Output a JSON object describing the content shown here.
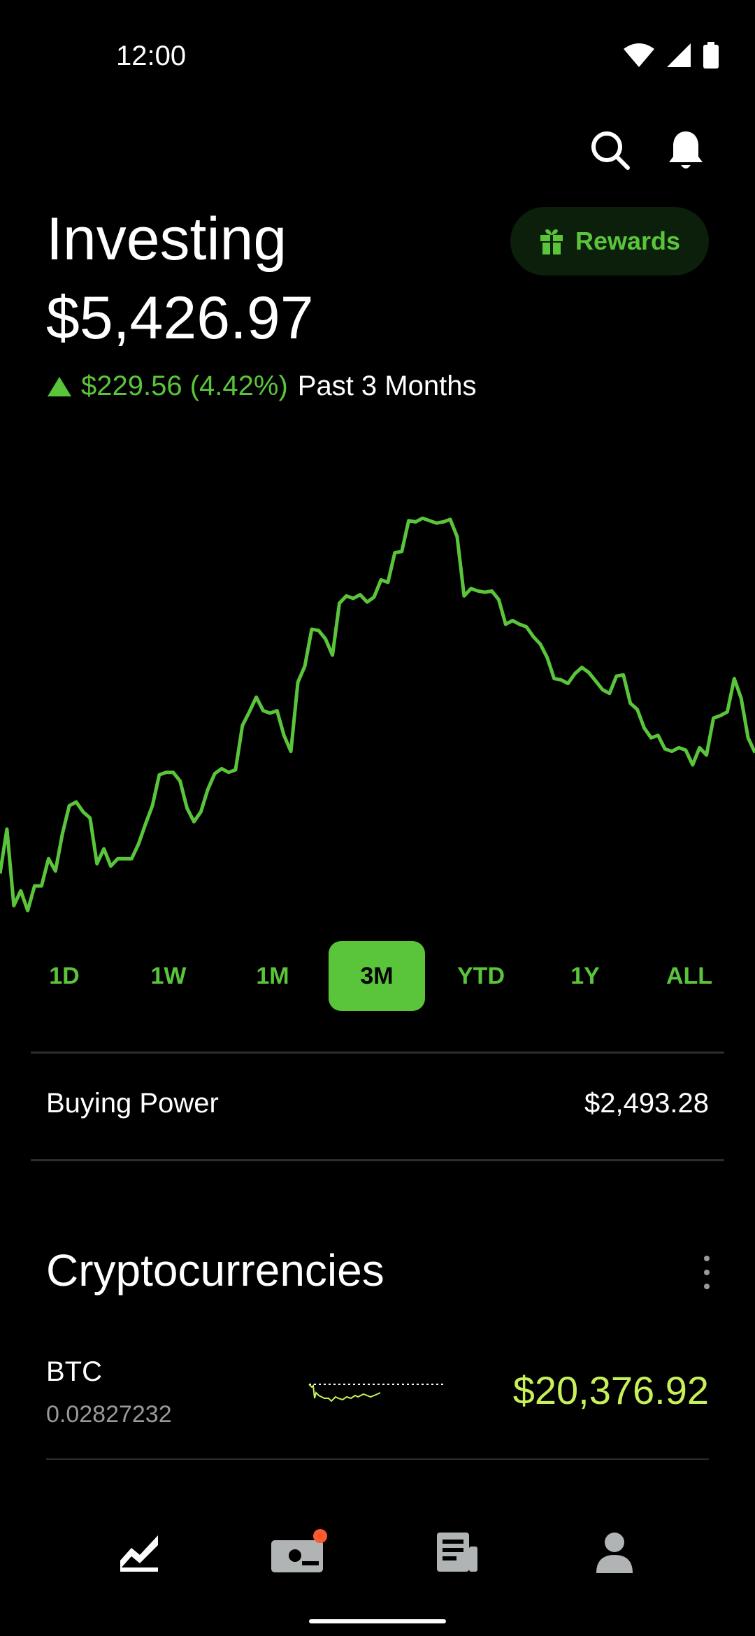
{
  "status_bar": {
    "time": "12:00"
  },
  "header": {
    "title": "Investing",
    "balance": "$5,426.97",
    "change": "$229.56 (4.42%)",
    "change_period": "Past 3 Months",
    "rewards_label": "Rewards"
  },
  "colors": {
    "accent": "#5ac53b",
    "crypto_price": "#c8f05a",
    "background": "#000000"
  },
  "chart_data": {
    "type": "line",
    "title": "",
    "xlabel": "",
    "ylabel": "",
    "grid": false,
    "series": [
      {
        "values": [
          5260,
          5296,
          5234,
          5246,
          5230,
          5250,
          5250,
          5272,
          5262,
          5292,
          5315,
          5318,
          5310,
          5305,
          5268,
          5280,
          5266,
          5272,
          5272,
          5272,
          5284,
          5300,
          5315,
          5340,
          5342,
          5342,
          5335,
          5313,
          5302,
          5310,
          5328,
          5341,
          5345,
          5342,
          5344,
          5380,
          5391,
          5403,
          5392,
          5390,
          5392,
          5372,
          5359,
          5415,
          5428,
          5458,
          5457,
          5450,
          5437,
          5479,
          5485,
          5483,
          5486,
          5480,
          5484,
          5498,
          5496,
          5520,
          5521,
          5546,
          5545,
          5548,
          5546,
          5544,
          5545,
          5547,
          5533,
          5485,
          5491,
          5489,
          5488,
          5489,
          5482,
          5462,
          5465,
          5462,
          5460,
          5452,
          5446,
          5435,
          5418,
          5417,
          5414,
          5422,
          5427,
          5423,
          5416,
          5409,
          5406,
          5420,
          5421,
          5398,
          5393,
          5378,
          5370,
          5372,
          5361,
          5359,
          5362,
          5360,
          5348,
          5362,
          5356,
          5386,
          5388,
          5391,
          5418,
          5402,
          5370,
          5358
        ]
      }
    ],
    "ylim": [
      5220,
      5560
    ]
  },
  "period_selector": {
    "options": [
      "1D",
      "1W",
      "1M",
      "3M",
      "YTD",
      "1Y",
      "ALL"
    ],
    "selected": "3M"
  },
  "buying_power": {
    "label": "Buying Power",
    "value": "$2,493.28"
  },
  "crypto": {
    "title": "Cryptocurrencies",
    "items": [
      {
        "symbol": "BTC",
        "quantity": "0.02827232",
        "price": "$20,376.92"
      }
    ]
  },
  "bottom_nav": {
    "items": [
      {
        "icon": "chart-trend-icon"
      },
      {
        "icon": "cash-card-icon",
        "badge": true
      },
      {
        "icon": "news-icon"
      },
      {
        "icon": "account-person-icon"
      }
    ]
  }
}
